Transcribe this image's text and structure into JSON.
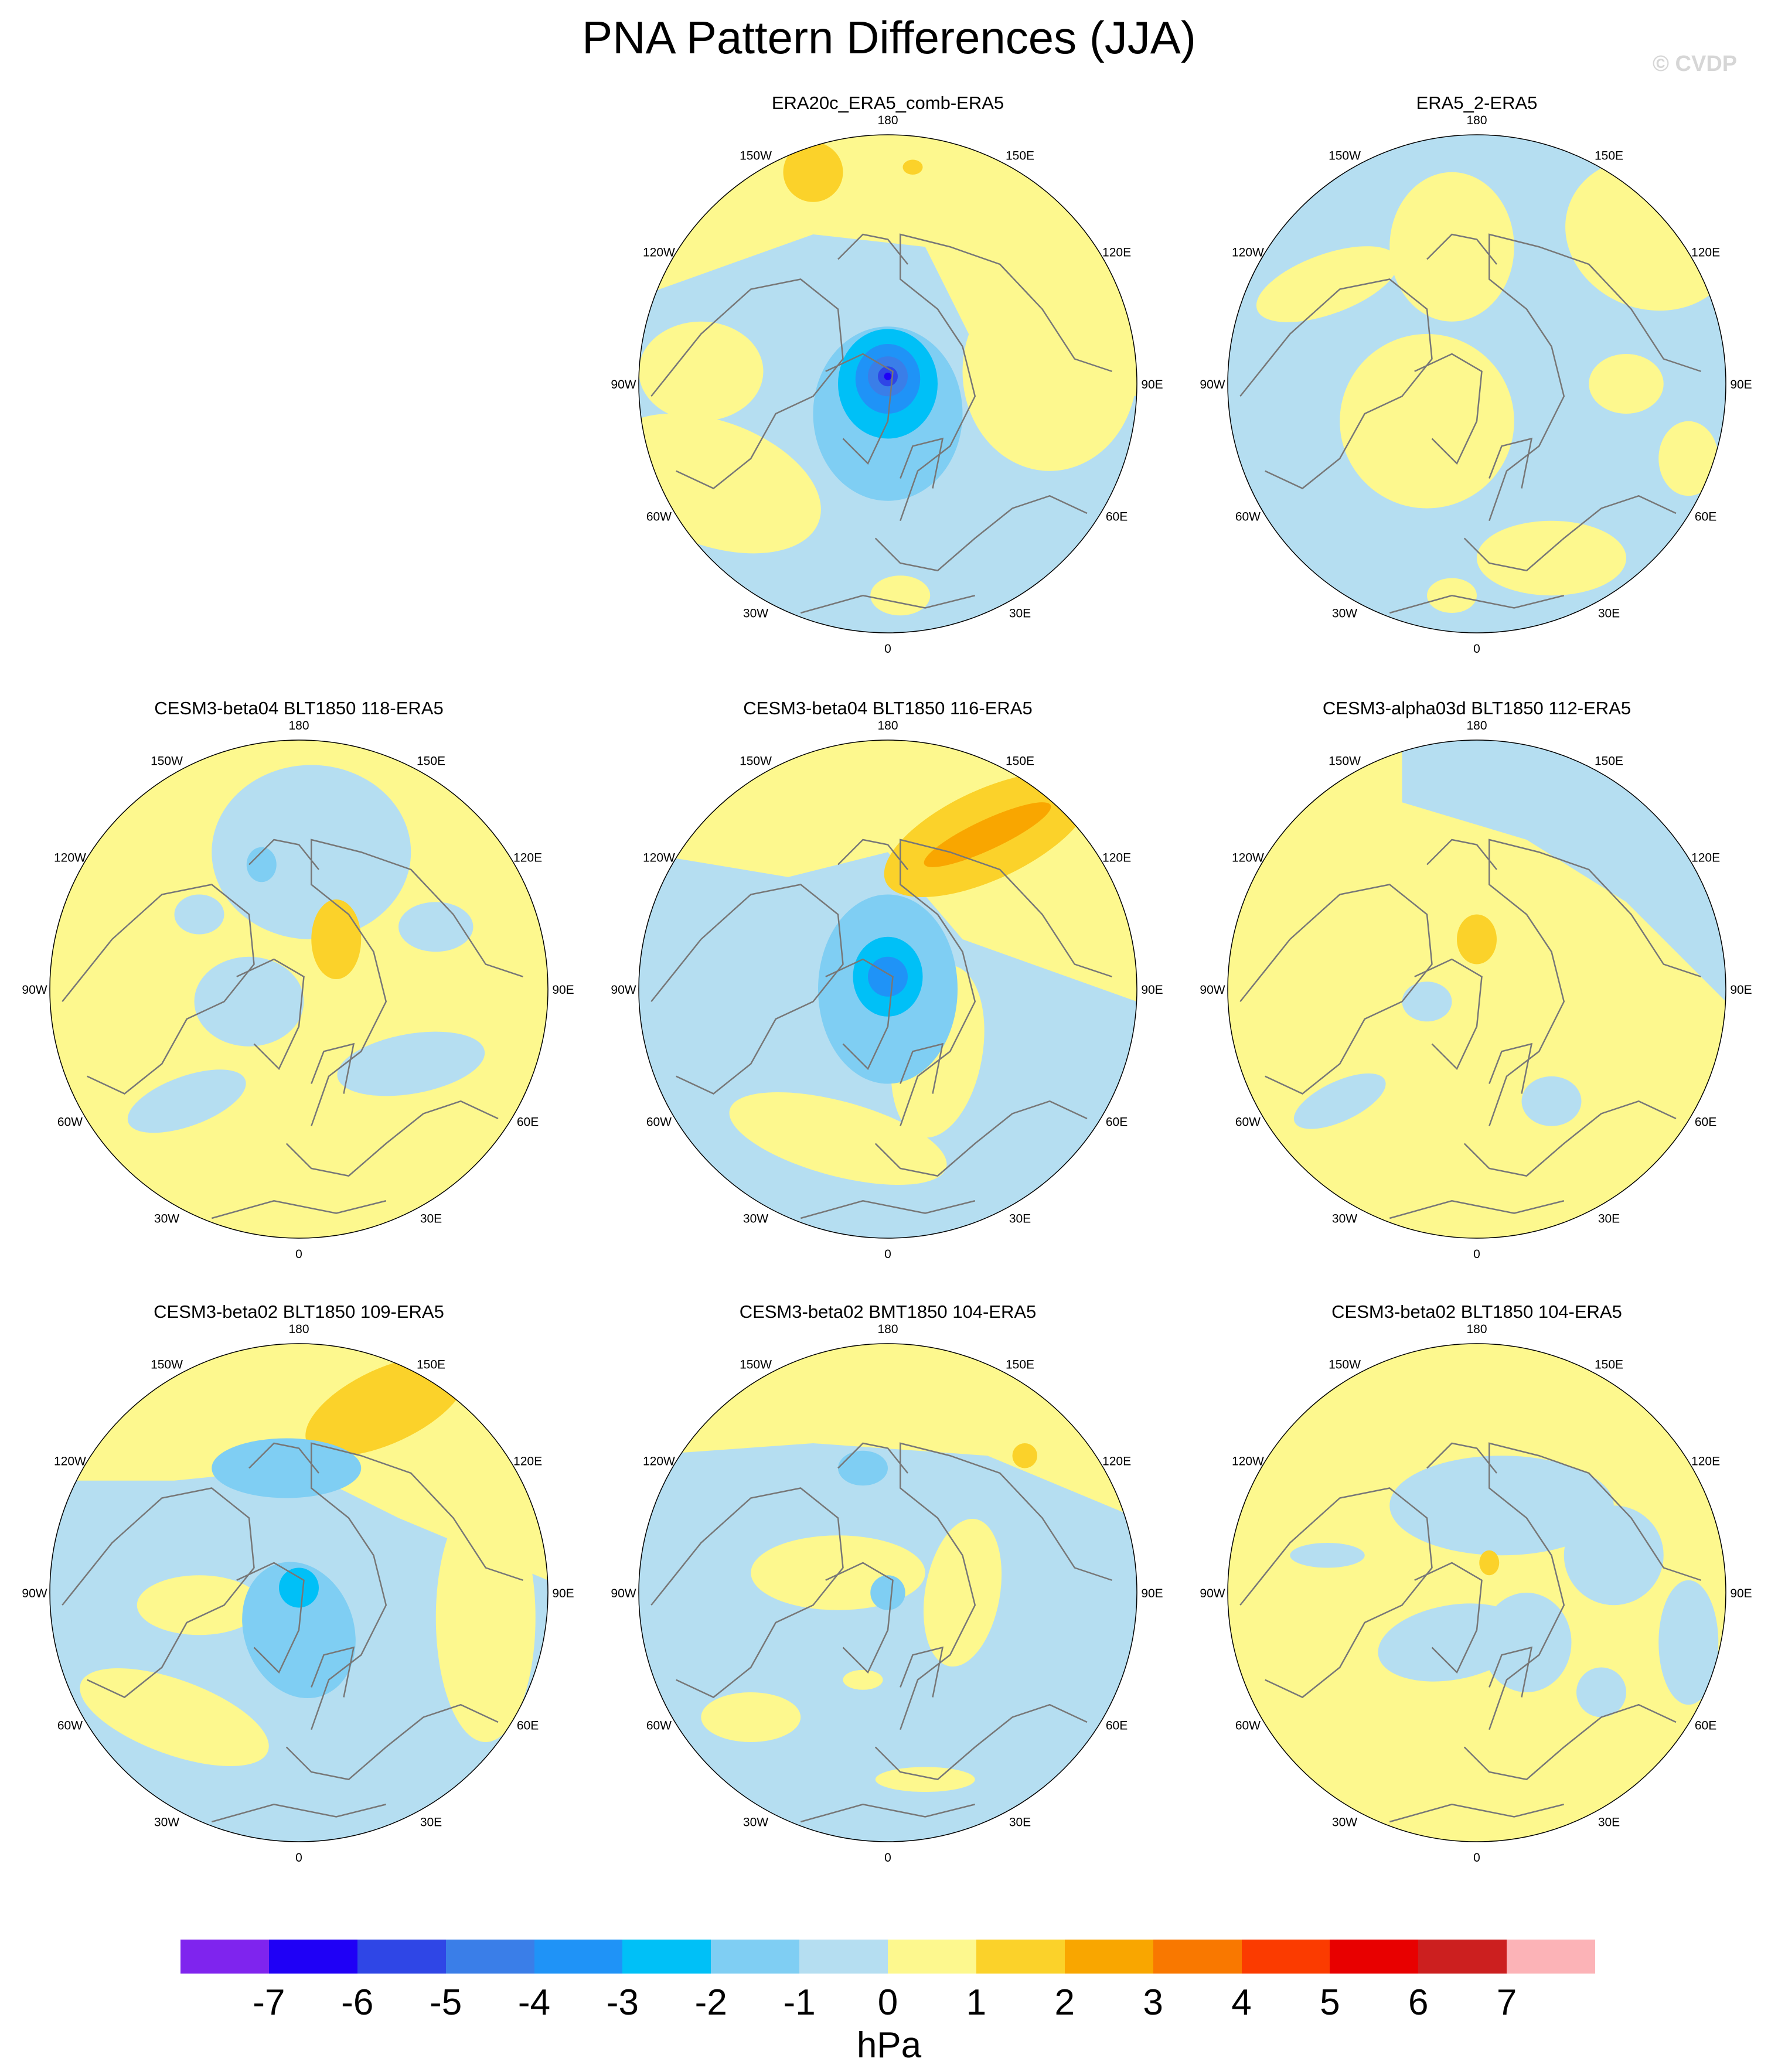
{
  "title": "PNA Pattern Differences (JJA)",
  "watermark": "© CVDP",
  "colors": {
    "ocean_land_border": "#777777",
    "frame": "#000000",
    "contour_fill": [
      "#7f24ee",
      "#1f00f6",
      "#2f46e6",
      "#3a7ee8",
      "#1f93f7",
      "#00c0f7",
      "#7fcef3",
      "#b5def1",
      "#fdf88e",
      "#fbd22a",
      "#f9a600",
      "#f97800",
      "#fb3b00",
      "#e80000",
      "#cc1f1f",
      "#fcb3b7"
    ]
  },
  "longitude_labels": [
    "180",
    "150E",
    "120E",
    "90E",
    "60E",
    "30E",
    "0",
    "30W",
    "60W",
    "90W",
    "120W",
    "150W"
  ],
  "panels": [
    {
      "title": "ERA20c_ERA5_comb-ERA5",
      "empty": false
    },
    {
      "title": "ERA5_2-ERA5",
      "empty": false
    },
    {
      "title": "CESM3-beta04 BLT1850 118-ERA5",
      "empty": false
    },
    {
      "title": "CESM3-beta04 BLT1850 116-ERA5",
      "empty": false
    },
    {
      "title": "CESM3-alpha03d BLT1850 112-ERA5",
      "empty": false
    },
    {
      "title": "CESM3-beta02 BLT1850 109-ERA5",
      "empty": false
    },
    {
      "title": "CESM3-beta02 BMT1850 104-ERA5",
      "empty": false
    },
    {
      "title": "CESM3-beta02 BLT1850 104-ERA5",
      "empty": false
    }
  ],
  "legend": {
    "units": "hPa",
    "ticks": [
      "-7",
      "-6",
      "-5",
      "-4",
      "-3",
      "-2",
      "-1",
      "0",
      "1",
      "2",
      "3",
      "4",
      "5",
      "6",
      "7"
    ]
  }
}
